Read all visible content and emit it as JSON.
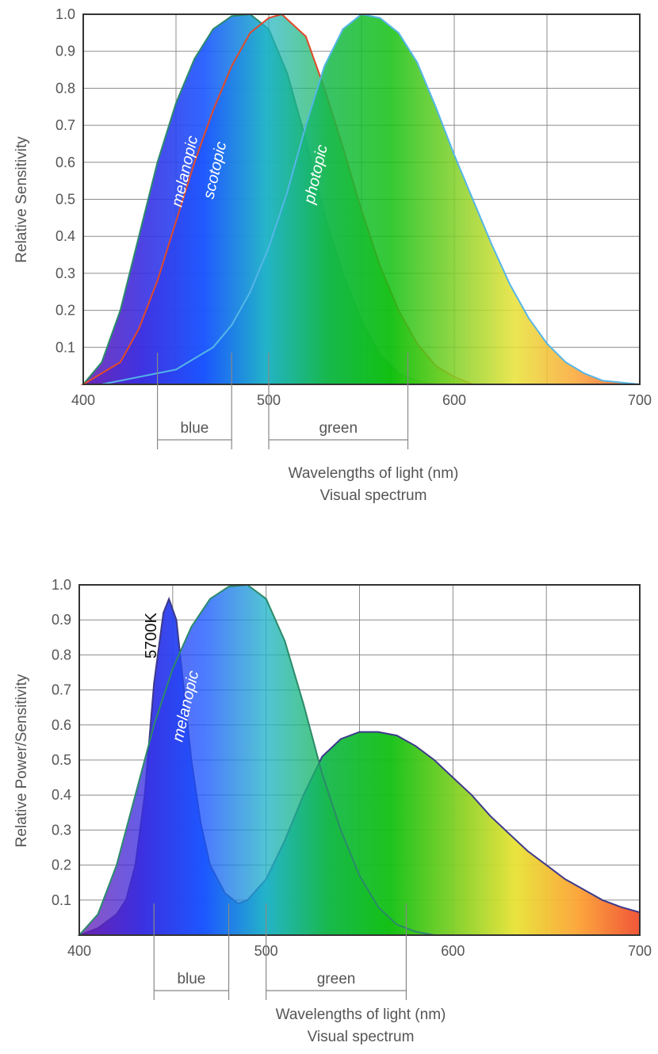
{
  "chart_data": [
    {
      "type": "area",
      "title": "",
      "ylabel": "Relative Sensitivity",
      "xlabel_lines": [
        "Wavelengths of light (nm)",
        "Visual spectrum"
      ],
      "xlim": [
        400,
        700
      ],
      "ylim": [
        0,
        1.0
      ],
      "x_ticks": [
        "400",
        "500",
        "600",
        "700"
      ],
      "y_ticks": [
        "0.1",
        "0.2",
        "0.3",
        "0.4",
        "0.5",
        "0.6",
        "0.7",
        "0.8",
        "0.9",
        "1.0"
      ],
      "grid": true,
      "bands": [
        {
          "label": "blue",
          "range": [
            440,
            480
          ]
        },
        {
          "label": "green",
          "range": [
            500,
            575
          ]
        }
      ],
      "series": [
        {
          "name": "melanopic",
          "peak_nm": 490,
          "values": [
            [
              400,
              0.0
            ],
            [
              410,
              0.06
            ],
            [
              420,
              0.2
            ],
            [
              430,
              0.4
            ],
            [
              440,
              0.6
            ],
            [
              450,
              0.76
            ],
            [
              460,
              0.88
            ],
            [
              470,
              0.96
            ],
            [
              480,
              0.995
            ],
            [
              490,
              1.0
            ],
            [
              500,
              0.96
            ],
            [
              510,
              0.84
            ],
            [
              520,
              0.66
            ],
            [
              530,
              0.46
            ],
            [
              540,
              0.3
            ],
            [
              550,
              0.17
            ],
            [
              560,
              0.08
            ],
            [
              570,
              0.03
            ],
            [
              580,
              0.01
            ],
            [
              590,
              0.0
            ]
          ]
        },
        {
          "name": "scotopic",
          "peak_nm": 507,
          "values": [
            [
              400,
              0.0
            ],
            [
              420,
              0.06
            ],
            [
              430,
              0.15
            ],
            [
              440,
              0.28
            ],
            [
              450,
              0.44
            ],
            [
              460,
              0.6
            ],
            [
              470,
              0.74
            ],
            [
              480,
              0.86
            ],
            [
              490,
              0.95
            ],
            [
              500,
              0.99
            ],
            [
              507,
              1.0
            ],
            [
              520,
              0.94
            ],
            [
              530,
              0.8
            ],
            [
              540,
              0.64
            ],
            [
              550,
              0.47
            ],
            [
              560,
              0.32
            ],
            [
              570,
              0.2
            ],
            [
              580,
              0.11
            ],
            [
              590,
              0.05
            ],
            [
              600,
              0.02
            ],
            [
              610,
              0.0
            ]
          ]
        },
        {
          "name": "photopic",
          "peak_nm": 555,
          "values": [
            [
              410,
              0.0
            ],
            [
              430,
              0.02
            ],
            [
              450,
              0.04
            ],
            [
              470,
              0.1
            ],
            [
              480,
              0.16
            ],
            [
              490,
              0.25
            ],
            [
              500,
              0.37
            ],
            [
              510,
              0.52
            ],
            [
              520,
              0.7
            ],
            [
              530,
              0.86
            ],
            [
              540,
              0.96
            ],
            [
              550,
              1.0
            ],
            [
              560,
              0.99
            ],
            [
              570,
              0.95
            ],
            [
              580,
              0.87
            ],
            [
              590,
              0.75
            ],
            [
              600,
              0.62
            ],
            [
              610,
              0.5
            ],
            [
              620,
              0.38
            ],
            [
              630,
              0.27
            ],
            [
              640,
              0.18
            ],
            [
              650,
              0.11
            ],
            [
              660,
              0.06
            ],
            [
              670,
              0.03
            ],
            [
              680,
              0.01
            ],
            [
              700,
              0.0
            ]
          ]
        }
      ]
    },
    {
      "type": "area",
      "title": "",
      "ylabel": "Relative Power/Sensitivity",
      "xlabel_lines": [
        "Wavelengths of light (nm)",
        "Visual spectrum"
      ],
      "xlim": [
        400,
        700
      ],
      "ylim": [
        0,
        1.0
      ],
      "x_ticks": [
        "400",
        "500",
        "600",
        "700"
      ],
      "y_ticks": [
        "0.1",
        "0.2",
        "0.3",
        "0.4",
        "0.5",
        "0.6",
        "0.7",
        "0.8",
        "0.9",
        "1.0"
      ],
      "grid": true,
      "bands": [
        {
          "label": "blue",
          "range": [
            440,
            480
          ]
        },
        {
          "label": "green",
          "range": [
            500,
            575
          ]
        }
      ],
      "series": [
        {
          "name": "5700K",
          "values": [
            [
              400,
              0.0
            ],
            [
              410,
              0.02
            ],
            [
              420,
              0.06
            ],
            [
              425,
              0.1
            ],
            [
              430,
              0.2
            ],
            [
              435,
              0.4
            ],
            [
              440,
              0.72
            ],
            [
              445,
              0.92
            ],
            [
              448,
              0.96
            ],
            [
              452,
              0.9
            ],
            [
              456,
              0.7
            ],
            [
              460,
              0.5
            ],
            [
              465,
              0.32
            ],
            [
              470,
              0.2
            ],
            [
              478,
              0.12
            ],
            [
              485,
              0.09
            ],
            [
              490,
              0.1
            ],
            [
              500,
              0.16
            ],
            [
              510,
              0.27
            ],
            [
              520,
              0.4
            ],
            [
              530,
              0.51
            ],
            [
              540,
              0.56
            ],
            [
              550,
              0.58
            ],
            [
              560,
              0.58
            ],
            [
              570,
              0.57
            ],
            [
              580,
              0.54
            ],
            [
              590,
              0.5
            ],
            [
              600,
              0.45
            ],
            [
              610,
              0.4
            ],
            [
              620,
              0.34
            ],
            [
              630,
              0.29
            ],
            [
              640,
              0.24
            ],
            [
              650,
              0.2
            ],
            [
              660,
              0.16
            ],
            [
              670,
              0.13
            ],
            [
              680,
              0.1
            ],
            [
              690,
              0.08
            ],
            [
              700,
              0.065
            ]
          ]
        },
        {
          "name": "melanopic",
          "peak_nm": 490,
          "values": [
            [
              400,
              0.0
            ],
            [
              410,
              0.06
            ],
            [
              420,
              0.2
            ],
            [
              430,
              0.4
            ],
            [
              440,
              0.6
            ],
            [
              450,
              0.76
            ],
            [
              460,
              0.88
            ],
            [
              470,
              0.96
            ],
            [
              480,
              0.995
            ],
            [
              490,
              1.0
            ],
            [
              500,
              0.96
            ],
            [
              510,
              0.84
            ],
            [
              520,
              0.66
            ],
            [
              530,
              0.46
            ],
            [
              540,
              0.3
            ],
            [
              550,
              0.17
            ],
            [
              560,
              0.08
            ],
            [
              570,
              0.03
            ],
            [
              580,
              0.01
            ],
            [
              590,
              0.0
            ]
          ]
        }
      ]
    }
  ],
  "colors": {
    "spectrum": [
      "#6a1fb0",
      "#3a2ee0",
      "#1a55ff",
      "#21b3c8",
      "#16b84a",
      "#11c011",
      "#7ccf24",
      "#e8e234",
      "#fca333",
      "#f04d2e"
    ],
    "melanopic_edge": "#2b8a6a",
    "scotopic_edge": "#e04a2a",
    "photopic_edge": "#55b6e8",
    "spd_edge": "#3d3a8a"
  }
}
